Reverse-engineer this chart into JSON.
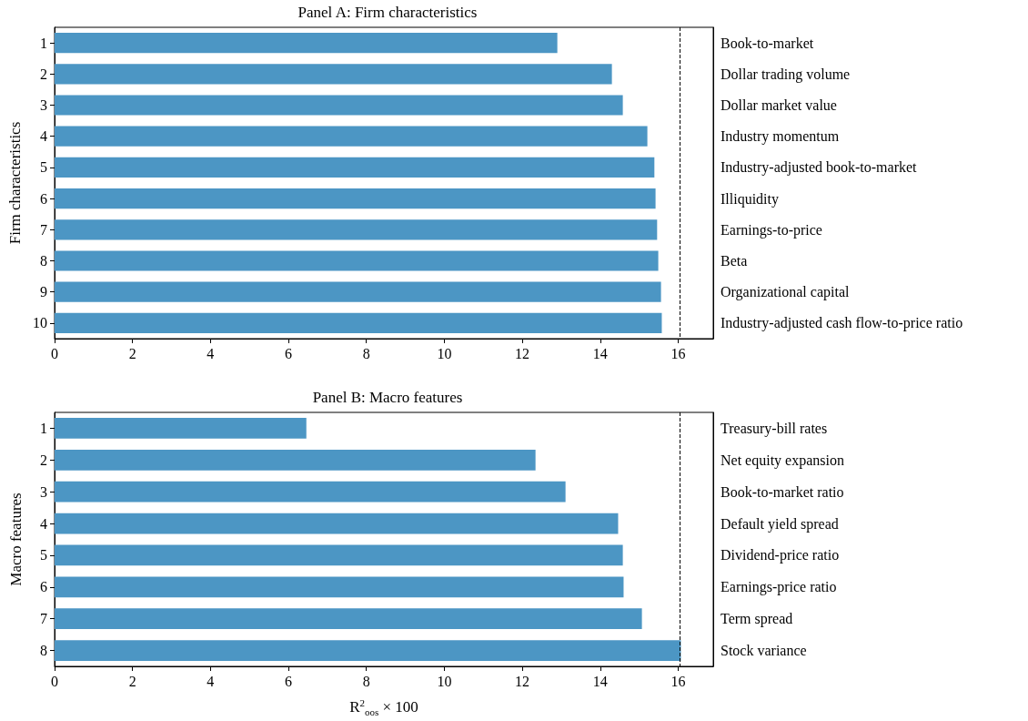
{
  "chart_data": [
    {
      "type": "bar",
      "orientation": "horizontal",
      "title": "Panel A: Firm characteristics",
      "ylabel": "Firm characteristics",
      "categories": [
        "1",
        "2",
        "3",
        "4",
        "5",
        "6",
        "7",
        "8",
        "9",
        "10"
      ],
      "y2_categories": [
        "Book-to-market",
        "Dollar trading volume",
        "Dollar market value",
        "Industry momentum",
        "Industry-adjusted book-to-market",
        "Illiquidity",
        "Earnings-to-price",
        "Beta",
        "Organizational capital",
        "Industry-adjusted cash flow-to-price ratio"
      ],
      "values": [
        12.9,
        14.3,
        14.58,
        15.21,
        15.39,
        15.42,
        15.46,
        15.49,
        15.56,
        15.58
      ],
      "color": "#4c96c4",
      "xlim": [
        0,
        16.9
      ],
      "xticks": [
        0,
        2,
        4,
        6,
        8,
        10,
        12,
        14,
        16
      ],
      "grid": false,
      "ref_lines": [
        {
          "axis": "x",
          "value": 16.05,
          "color": "#000000",
          "line_style": "dashed"
        }
      ]
    },
    {
      "type": "bar",
      "orientation": "horizontal",
      "title": "Panel B: Macro features",
      "ylabel": "Macro features",
      "xlabel": "R$^{2}$$_{oos}$ × 100",
      "categories": [
        "1",
        "2",
        "3",
        "4",
        "5",
        "6",
        "7",
        "8"
      ],
      "y2_categories": [
        "Treasury-bill rates",
        "Net equity expansion",
        "Book-to-market ratio",
        "Default yield spread",
        "Dividend-price ratio",
        "Earnings-price ratio",
        "Term spread",
        "Stock variance"
      ],
      "values": [
        6.46,
        12.34,
        13.11,
        14.46,
        14.58,
        14.6,
        15.07,
        16.07
      ],
      "color": "#4c96c4",
      "xlim": [
        0,
        16.9
      ],
      "xticks": [
        0,
        2,
        4,
        6,
        8,
        10,
        12,
        14,
        16
      ],
      "grid": false,
      "ref_lines": [
        {
          "axis": "x",
          "value": 16.05,
          "color": "#000000",
          "line_style": "dashed"
        }
      ]
    }
  ]
}
